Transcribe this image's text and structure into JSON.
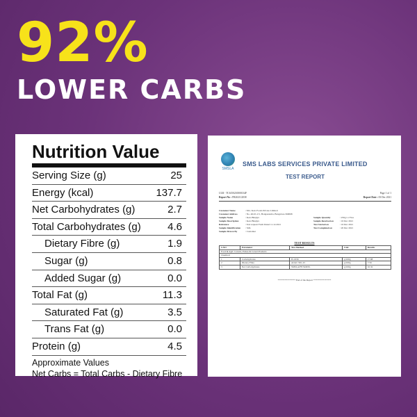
{
  "headline": {
    "percent": "92%",
    "subtitle": "LOWER CARBS"
  },
  "nutrition": {
    "title": "Nutrition Value",
    "rows": [
      {
        "label": "Serving Size (g)",
        "value": "25"
      },
      {
        "label": "Energy (kcal)",
        "value": "137.7"
      },
      {
        "label": "Net Carbohydrates (g)",
        "value": "2.7"
      },
      {
        "label": "Total Carbohydrates (g)",
        "value": "4.6"
      },
      {
        "label": "Dietary Fibre (g)",
        "value": "1.9"
      },
      {
        "label": "Sugar (g)",
        "value": "0.8"
      },
      {
        "label": "Added Sugar (g)",
        "value": "0.0"
      },
      {
        "label": "Total Fat (g)",
        "value": "11.3"
      },
      {
        "label": "Saturated Fat (g)",
        "value": "3.5"
      },
      {
        "label": "Trans Fat (g)",
        "value": "0.0"
      },
      {
        "label": "Protein (g)",
        "value": "4.5"
      }
    ],
    "footnote1": "Approximate Values",
    "footnote2": "Net Carbs = Total Carbs - Dietary Fibre"
  },
  "report": {
    "logo_text": "SMSLA",
    "lab_name": "SMS LABS SERVICES PRIVATE LIMITED",
    "title": "TEST REPORT",
    "ulr": "ULR - TC6150210000134F",
    "report_no_label": "Report No :",
    "report_no": "FR202112038",
    "page": "Page 1 of 1",
    "report_date_label": "Report Date :",
    "report_date": "03 Dec 2021",
    "details": [
      {
        "k": "Customer Name",
        "v": ": M/s. Keto Foods Private Limited",
        "k2": "",
        "v2": ""
      },
      {
        "k": "Customer Address",
        "v": ": No. 46/2C-C5, Hongasandra, Bangalore-560068",
        "k2": "",
        "v2": ""
      },
      {
        "k": "Sample Name",
        "v": ": Keto Bhujiya",
        "k2": "Sample Quantity",
        "v2": ": 250g x 2 Nos"
      },
      {
        "k": "Sample Description",
        "v": ": Keto Bhujiya",
        "k2": "Sample Received on",
        "v2": ": 16 Dec 2021"
      },
      {
        "k": "Reference",
        "v": ": Test request Form Dated 11.12.2021",
        "k2": "Test Started on",
        "v2": ": 16 Dec 2021"
      },
      {
        "k": "Sample Identification",
        "v": ": SOL",
        "k2": "Test Completed on",
        "v2": ": 20 Dec 2021"
      },
      {
        "k": "Sample Drawn By",
        "v": ": Customer",
        "k2": "",
        "v2": ""
      }
    ],
    "results_title": "TEST RESULTS",
    "table_headers": [
      "S.NO",
      "Parameter",
      "Test Method",
      "Unit",
      "Results"
    ],
    "group_label": "Food & Agri: Cereals, Pulses & Cereal Products",
    "subgroup_label": "Chemical",
    "rows": [
      {
        "sno": "1",
        "param": "Carbohydrates",
        "method": "IS 1656",
        "unit": "g/100g",
        "result": "17.88"
      },
      {
        "sno": "2",
        "param": "Dietary Fibre",
        "method": "AOAC 991.43",
        "unit": "g/100g",
        "result": "7.56"
      },
      {
        "sno": "3",
        "param": "Net Carbohydrates",
        "method": "SMSLA/FE/SOP/01",
        "unit": "g/100g",
        "result": "10.32"
      }
    ],
    "end_text": "*************** End of the Report ***************"
  }
}
